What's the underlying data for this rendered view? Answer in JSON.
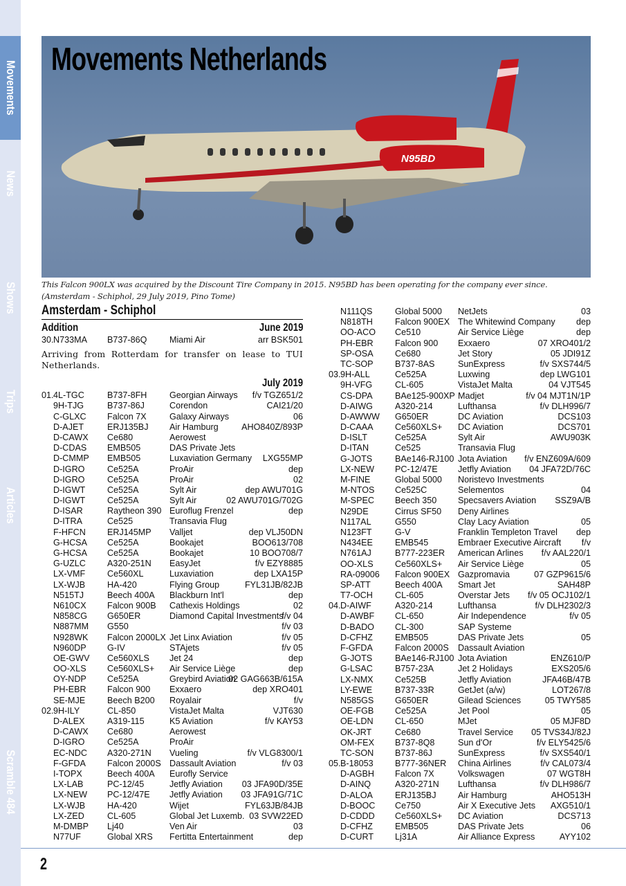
{
  "sidebar": {
    "tabs": [
      {
        "label": "Movements",
        "active": true
      },
      {
        "label": "News"
      },
      {
        "label": "Shows"
      },
      {
        "label": "Trips"
      },
      {
        "label": "Articles"
      },
      {
        "label": "Scramble 484"
      }
    ]
  },
  "header": {
    "title": "Movements Netherlands"
  },
  "photo": {
    "registration_on_aircraft": "N95BD"
  },
  "caption": "This  Falcon 900LX was acquired by the Discount Tire Company in 2015. N95BD has been operating for the company ever since. (Amsterdam - Schiphol, 29 July 2019, Pino Tome)",
  "section": {
    "title": "Amsterdam - Schiphol",
    "addition": {
      "label": "Addition",
      "month": "June 2019",
      "rows": [
        [
          "30.",
          "N733MA",
          "B737-86Q",
          "Miami Air",
          "arr BSK501"
        ]
      ],
      "note": "Arriving from Rotterdam for transfer on lease to TUI Netherlands."
    },
    "july": {
      "month": "July 2019",
      "left_rows": [
        [
          "01.",
          "4L-TGC",
          "B737-8FH",
          "Georgian Airways",
          "f/v TGZ651/2"
        ],
        [
          "",
          "9H-TJG",
          "B737-86J",
          "Corendon",
          "CAI21/20"
        ],
        [
          "",
          "C-GLXC",
          "Falcon 7X",
          "Galaxy Airways",
          "06"
        ],
        [
          "",
          "D-AJET",
          "ERJ135BJ",
          "Air Hamburg",
          "AHO840Z/893P"
        ],
        [
          "",
          "D-CAWX",
          "Ce680",
          "Aerowest",
          ""
        ],
        [
          "",
          "D-CDAS",
          "EMB505",
          "DAS Private Jets",
          ""
        ],
        [
          "",
          "D-CMMP",
          "EMB505",
          "Luxaviation Germany",
          "LXG55MP"
        ],
        [
          "",
          "D-IGRO",
          "Ce525A",
          "ProAir",
          "dep"
        ],
        [
          "",
          "D-IGRO",
          "Ce525A",
          "ProAir",
          "02"
        ],
        [
          "",
          "D-IGWT",
          "Ce525A",
          "Sylt Air",
          "dep AWU701G"
        ],
        [
          "",
          "D-IGWT",
          "Ce525A",
          "Sylt Air",
          "02 AWU701G/702G"
        ],
        [
          "",
          "D-ISAR",
          "Raytheon 390",
          "Euroflug Frenzel",
          "dep"
        ],
        [
          "",
          "D-ITRA",
          "Ce525",
          "Transavia Flug",
          ""
        ],
        [
          "",
          "F-HFCN",
          "ERJ145MP",
          "Valljet",
          "dep VLJ50DN"
        ],
        [
          "",
          "G-HCSA",
          "Ce525A",
          "Bookajet",
          "BOO613/708"
        ],
        [
          "",
          "G-HCSA",
          "Ce525A",
          "Bookajet",
          "10 BOO708/7"
        ],
        [
          "",
          "G-UZLC",
          "A320-251N",
          "EasyJet",
          "f/v EZY8885"
        ],
        [
          "",
          "LX-VMF",
          "Ce560XL",
          "Luxaviation",
          "dep LXA15P"
        ],
        [
          "",
          "LX-WJB",
          "HA-420",
          "Flying Group",
          "FYL31JB/82JB"
        ],
        [
          "",
          "N515TJ",
          "Beech 400A",
          "Blackburn Int'l",
          "dep"
        ],
        [
          "",
          "N610CX",
          "Falcon 900B",
          "Cathexis Holdings",
          "02"
        ],
        [
          "",
          "N858CG",
          "G650ER",
          "Diamond Capital Investments",
          "f/v 04"
        ],
        [
          "",
          "N887MM",
          "G550",
          "",
          "f/v 03"
        ],
        [
          "",
          "N928WK",
          "Falcon 2000LX",
          "Jet Linx Aviation",
          "f/v 05"
        ],
        [
          "",
          "N960DP",
          "G-IV",
          "STAjets",
          "f/v 05"
        ],
        [
          "",
          "OE-GWV",
          "Ce560XLS",
          "Jet 24",
          "dep"
        ],
        [
          "",
          "OO-XLS",
          "Ce560XLS+",
          "Air Service Liège",
          "dep"
        ],
        [
          "",
          "OY-NDP",
          "Ce525A",
          "Greybird Aviation",
          "02 GAG663B/615A"
        ],
        [
          "",
          "PH-EBR",
          "Falcon 900",
          "Exxaero",
          "dep XRO401"
        ],
        [
          "",
          "SE-MJE",
          "Beech B200",
          "Royalair",
          "f/v"
        ],
        [
          "02.",
          "9H-ILY",
          "CL-850",
          "VistaJet Malta",
          "VJT630"
        ],
        [
          "",
          "D-ALEX",
          "A319-115",
          "K5 Aviation",
          "f/v KAY53"
        ],
        [
          "",
          "D-CAWX",
          "Ce680",
          "Aerowest",
          ""
        ],
        [
          "",
          "D-IGRO",
          "Ce525A",
          "ProAir",
          ""
        ],
        [
          "",
          "EC-NDC",
          "A320-271N",
          "Vueling",
          "f/v VLG8300/1"
        ],
        [
          "",
          "F-GFDA",
          "Falcon 2000S",
          "Dassault Aviation",
          "f/v 03"
        ],
        [
          "",
          "I-TOPX",
          "Beech 400A",
          "Eurofly Service",
          ""
        ],
        [
          "",
          "LX-LAB",
          "PC-12/45",
          "Jetfly Aviation",
          "03 JFA90D/35E"
        ],
        [
          "",
          "LX-NEW",
          "PC-12/47E",
          "Jetfly Aviation",
          "03 JFA91G/71C"
        ],
        [
          "",
          "LX-WJB",
          "HA-420",
          "Wijet",
          "FYL63JB/84JB"
        ],
        [
          "",
          "LX-ZED",
          "CL-605",
          "Global Jet Luxemb.",
          "03 SVW22ED"
        ],
        [
          "",
          "M-DMBP",
          "Lj40",
          "Ven Air",
          "03"
        ],
        [
          "",
          "N77UF",
          "Global XRS",
          "Fertitta Entertainment",
          "dep"
        ]
      ],
      "right_rows": [
        [
          "",
          "N111QS",
          "Global 5000",
          "NetJets",
          "03"
        ],
        [
          "",
          "N818TH",
          "Falcon 900EX",
          "The Whitewind Company",
          "dep"
        ],
        [
          "",
          "OO-ACO",
          "Ce510",
          "Air Service Liège",
          "dep"
        ],
        [
          "",
          "PH-EBR",
          "Falcon 900",
          "Exxaero",
          "07 XRO401/2"
        ],
        [
          "",
          "SP-OSA",
          "Ce680",
          "Jet Story",
          "05 JDI91Z"
        ],
        [
          "",
          "TC-SOP",
          "B737-8AS",
          "SunExpress",
          "f/v SXS744/5"
        ],
        [
          "03.",
          "9H-ALL",
          "Ce525A",
          "Luxwing",
          "dep LWG101"
        ],
        [
          "",
          "9H-VFG",
          "CL-605",
          "VistaJet Malta",
          "04 VJT545"
        ],
        [
          "",
          "CS-DPA",
          "BAe125-900XP",
          "Madjet",
          "f/v 04 MJT1N/1P"
        ],
        [
          "",
          "D-AIWG",
          "A320-214",
          "Lufthansa",
          "f/v DLH996/7"
        ],
        [
          "",
          "D-AWWW",
          "G650ER",
          "DC Aviation",
          "DCS103"
        ],
        [
          "",
          "D-CAAA",
          "Ce560XLS+",
          "DC Aviation",
          "DCS701"
        ],
        [
          "",
          "D-ISLT",
          "Ce525A",
          "Sylt Air",
          "AWU903K"
        ],
        [
          "",
          "D-ITAN",
          "Ce525",
          "Transavia Flug",
          ""
        ],
        [
          "",
          "G-JOTS",
          "BAe146-RJ100",
          "Jota Aviation",
          "f/v ENZ609A/609"
        ],
        [
          "",
          "LX-NEW",
          "PC-12/47E",
          "Jetfly Aviation",
          "04 JFA72D/76C"
        ],
        [
          "",
          "M-FINE",
          "Global 5000",
          "Noristevo Investments",
          ""
        ],
        [
          "",
          "M-NTOS",
          "Ce525C",
          "Selementos",
          "04"
        ],
        [
          "",
          "M-SPEC",
          "Beech 350",
          "Specsavers Aviation",
          "SSZ9A/B"
        ],
        [
          "",
          "N29DE",
          "Cirrus SF50",
          "Deny Airlines",
          ""
        ],
        [
          "",
          "N117AL",
          "G550",
          "Clay Lacy Aviation",
          "05"
        ],
        [
          "",
          "N123FT",
          "G-V",
          "Franklin Templeton Travel",
          "dep"
        ],
        [
          "",
          "N434EE",
          "EMB545",
          "Embraer Executive Aircraft",
          "f/v"
        ],
        [
          "",
          "N761AJ",
          "B777-223ER",
          "American Arlines",
          "f/v AAL220/1"
        ],
        [
          "",
          "OO-XLS",
          "Ce560XLS+",
          "Air Service Liège",
          "05"
        ],
        [
          "",
          "RA-09006",
          "Falcon 900EX",
          "Gazpromavia",
          "07 GZP9615/6"
        ],
        [
          "",
          "SP-ATT",
          "Beech 400A",
          "Smart Jet",
          "SAH48P"
        ],
        [
          "",
          "T7-OCH",
          "CL-605",
          "Overstar Jets",
          "f/v 05 OCJ102/1"
        ],
        [
          "04.",
          "D-AIWF",
          "A320-214",
          "Lufthansa",
          "f/v DLH2302/3"
        ],
        [
          "",
          "D-AWBF",
          "CL-650",
          "Air Independence",
          "f/v 05"
        ],
        [
          "",
          "D-BADO",
          "CL-300",
          "SAP Systeme",
          ""
        ],
        [
          "",
          "D-CFHZ",
          "EMB505",
          "DAS Private Jets",
          "05"
        ],
        [
          "",
          "F-GFDA",
          "Falcon 2000S",
          "Dassault Aviation",
          ""
        ],
        [
          "",
          "G-JOTS",
          "BAe146-RJ100",
          "Jota Aviation",
          "ENZ610/P"
        ],
        [
          "",
          "G-LSAC",
          "B757-23A",
          "Jet 2 Holidays",
          "EXS205/6"
        ],
        [
          "",
          "LX-NMX",
          "Ce525B",
          "Jetfly Aviation",
          "JFA46B/47B"
        ],
        [
          "",
          "LY-EWE",
          "B737-33R",
          "GetJet (a/w)",
          "LOT267/8"
        ],
        [
          "",
          "N585GS",
          "G650ER",
          "Gilead Sciences",
          "05 TWY585"
        ],
        [
          "",
          "OE-FGB",
          "Ce525A",
          "Jet Pool",
          "05"
        ],
        [
          "",
          "OE-LDN",
          "CL-650",
          "MJet",
          "05 MJF8D"
        ],
        [
          "",
          "OK-JRT",
          "Ce680",
          "Travel Service",
          "05 TVS34J/82J"
        ],
        [
          "",
          "OM-FEX",
          "B737-8Q8",
          "Sun d'Or",
          "f/v ELY5425/6"
        ],
        [
          "",
          "TC-SON",
          "B737-86J",
          "SunExpress",
          "f/v SXS540/1"
        ],
        [
          "05.",
          "B-18053",
          "B777-36NER",
          "China Airlines",
          "f/v CAL073/4"
        ],
        [
          "",
          "D-AGBH",
          "Falcon 7X",
          "Volkswagen",
          "07 WGT8H"
        ],
        [
          "",
          "D-AINQ",
          "A320-271N",
          "Lufthansa",
          "f/v DLH986/7"
        ],
        [
          "",
          "D-ALOA",
          "ERJ135BJ",
          "Air Hamburg",
          "AHO513H"
        ],
        [
          "",
          "D-BOOC",
          "Ce750",
          "Air X Executive Jets",
          "AXG510/1"
        ],
        [
          "",
          "D-CDDD",
          "Ce560XLS+",
          "DC Aviation",
          "DCS713"
        ],
        [
          "",
          "D-CFHZ",
          "EMB505",
          "DAS Private Jets",
          "06"
        ],
        [
          "",
          "D-CURT",
          "Lj31A",
          "Air Alliance Express",
          "AYY102"
        ]
      ]
    }
  },
  "footer": {
    "page_number": "2"
  },
  "colors": {
    "sidebar": "#dfe5f3",
    "sidebar_active": "#6f97cb",
    "rule": "#7d9bc9"
  }
}
